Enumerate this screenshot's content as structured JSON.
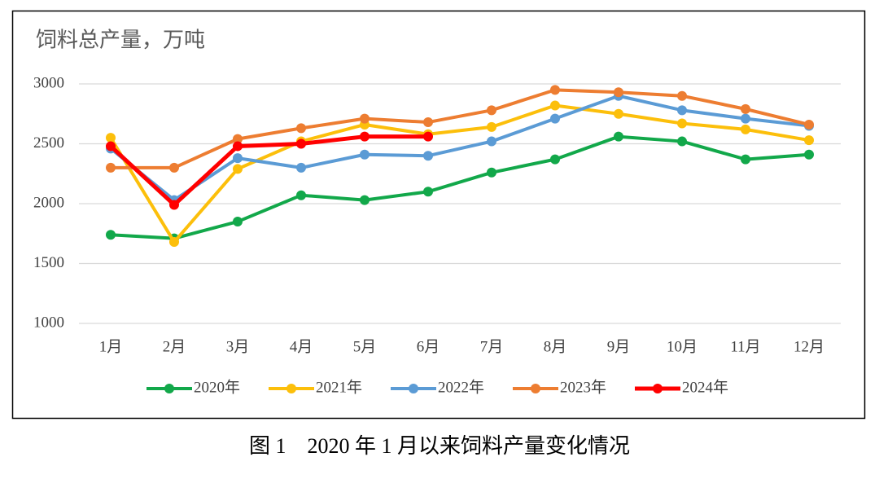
{
  "chart_data": {
    "type": "line",
    "title": "饲料总产量，万吨",
    "caption": "图 1　2020 年 1 月以来饲料产量变化情况",
    "categories": [
      "1月",
      "2月",
      "3月",
      "4月",
      "5月",
      "6月",
      "7月",
      "8月",
      "9月",
      "10月",
      "11月",
      "12月"
    ],
    "series": [
      {
        "name": "2020年",
        "color": "#12a84a",
        "values": [
          1740,
          1710,
          1850,
          2070,
          2030,
          2100,
          2260,
          2370,
          2560,
          2520,
          2370,
          2410
        ]
      },
      {
        "name": "2021年",
        "color": "#fcbf0b",
        "values": [
          2550,
          1680,
          2290,
          2520,
          2660,
          2580,
          2640,
          2820,
          2750,
          2670,
          2620,
          2530
        ]
      },
      {
        "name": "2022年",
        "color": "#5b9bd5",
        "values": [
          2460,
          2030,
          2380,
          2300,
          2410,
          2400,
          2520,
          2710,
          2900,
          2780,
          2710,
          2650
        ]
      },
      {
        "name": "2023年",
        "color": "#ed7d31",
        "values": [
          2300,
          2300,
          2540,
          2630,
          2710,
          2680,
          2780,
          2950,
          2930,
          2900,
          2790,
          2660
        ]
      },
      {
        "name": "2024年",
        "color": "#ff0000",
        "values": [
          2480,
          1990,
          2480,
          2500,
          2560,
          2560,
          null,
          null,
          null,
          null,
          null,
          null
        ]
      }
    ],
    "ylim": [
      1000,
      3000
    ],
    "yticks": [
      1000,
      1500,
      2000,
      2500,
      3000
    ],
    "grid": true,
    "legend": "bottom"
  }
}
